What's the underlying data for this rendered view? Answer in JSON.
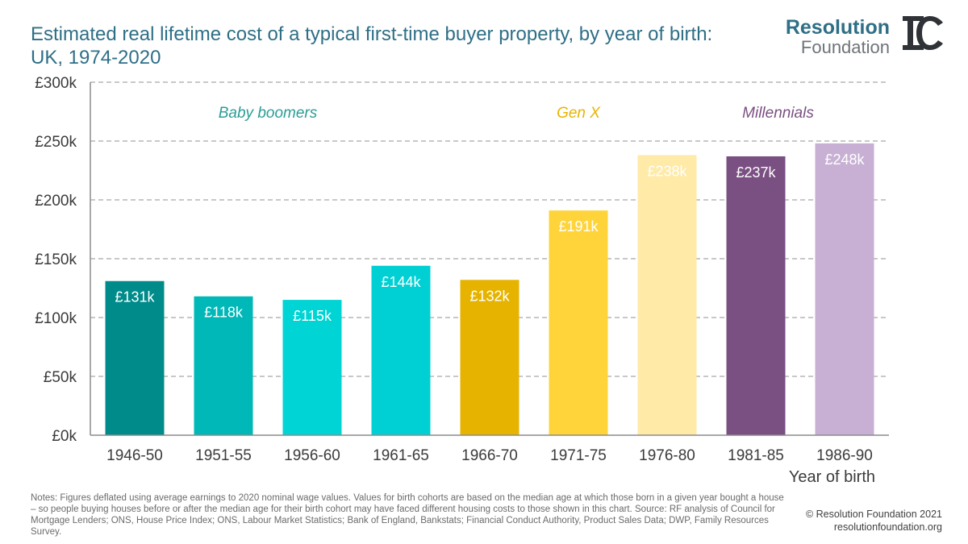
{
  "title_line1": "Estimated real lifetime cost of a typical first-time buyer property, by year of birth:",
  "title_line2": "UK, 1974-2020",
  "logo": {
    "line1": "Resolution",
    "line2": "Foundation"
  },
  "colors": {
    "title": "#2e6f86",
    "gridline": "#a6a6a6",
    "axis": "#8c8c8c",
    "boomers_label": "#2a9d95",
    "genx_label": "#e8b400",
    "millennials_label": "#7b4f82"
  },
  "chart_data": {
    "type": "bar",
    "xlabel": "Year of birth",
    "ylabel": "",
    "ylim": [
      0,
      300
    ],
    "yticks": [
      0,
      50,
      100,
      150,
      200,
      250,
      300
    ],
    "ytick_labels": [
      "£0k",
      "£50k",
      "£100k",
      "£150k",
      "£200k",
      "£250k",
      "£300k"
    ],
    "grid": true,
    "categories": [
      "1946-50",
      "1951-55",
      "1956-60",
      "1961-65",
      "1966-70",
      "1971-75",
      "1976-80",
      "1981-85",
      "1986-90"
    ],
    "values": [
      131,
      118,
      115,
      144,
      132,
      191,
      238,
      237,
      248
    ],
    "data_labels": [
      "£131k",
      "£118k",
      "£115k",
      "£144k",
      "£132k",
      "£191k",
      "£238k",
      "£237k",
      "£248k"
    ],
    "bar_colors": [
      "#008b8b",
      "#00b8b8",
      "#00d4d4",
      "#00d0d4",
      "#e6b400",
      "#ffd43b",
      "#ffeaa8",
      "#7a4f82",
      "#c8b0d4"
    ],
    "group_annotations": [
      {
        "text": "Baby boomers",
        "at_category": 1.5,
        "color": "#2a9d95"
      },
      {
        "text": "Gen X",
        "at_category": 5.0,
        "color": "#e8b400"
      },
      {
        "text": "Millennials",
        "at_category": 7.25,
        "color": "#7b4f82"
      }
    ]
  },
  "notes": "Notes: Figures deflated using average earnings to 2020 nominal wage values. Values for birth cohorts are based on the median age at which those born in a given year bought a house – so people buying houses before or after the median age for their birth cohort may have faced different housing costs to those shown in this chart. Source: RF analysis of Council for Mortgage Lenders; ONS, House Price Index; ONS, Labour Market Statistics; Bank of England, Bankstats; Financial Conduct Authority, Product Sales Data; DWP, Family Resources Survey.",
  "credit": {
    "line1": "© Resolution Foundation 2021",
    "line2": "resolutionfoundation.org"
  }
}
